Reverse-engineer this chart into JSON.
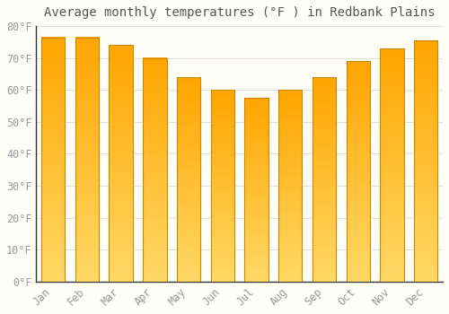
{
  "title": "Average monthly temperatures (°F ) in Redbank Plains",
  "months": [
    "Jan",
    "Feb",
    "Mar",
    "Apr",
    "May",
    "Jun",
    "Jul",
    "Aug",
    "Sep",
    "Oct",
    "Nov",
    "Dec"
  ],
  "values": [
    76.5,
    76.5,
    74.0,
    70.0,
    64.0,
    60.0,
    57.5,
    60.0,
    64.0,
    69.0,
    73.0,
    75.5
  ],
  "bar_color": "#FFA500",
  "bar_color_light": "#FFD966",
  "bar_edge_color": "#CC8800",
  "background_color": "#FFFFF8",
  "grid_color": "#DDDDDD",
  "tick_label_color": "#999999",
  "title_color": "#555555",
  "ylim": [
    0,
    80
  ],
  "yticks": [
    0,
    10,
    20,
    30,
    40,
    50,
    60,
    70,
    80
  ],
  "ytick_labels": [
    "0°F",
    "10°F",
    "20°F",
    "30°F",
    "40°F",
    "50°F",
    "60°F",
    "70°F",
    "80°F"
  ],
  "title_fontsize": 10,
  "tick_fontsize": 8.5
}
